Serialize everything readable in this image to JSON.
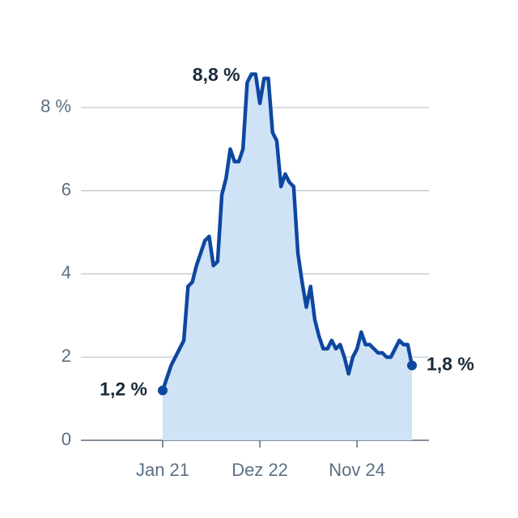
{
  "chart_data": {
    "type": "area",
    "categories": [
      "Jan 21",
      null,
      null,
      null,
      null,
      null,
      null,
      null,
      null,
      null,
      null,
      null,
      null,
      null,
      null,
      null,
      null,
      null,
      null,
      null,
      null,
      null,
      null,
      "Dez 22",
      null,
      null,
      null,
      null,
      null,
      null,
      null,
      null,
      null,
      null,
      null,
      null,
      null,
      null,
      null,
      null,
      null,
      null,
      null,
      null,
      null,
      null,
      "Nov 24",
      null,
      null,
      null,
      null,
      null,
      null,
      null,
      null,
      null,
      null,
      null,
      null,
      null
    ],
    "values": [
      1.2,
      1.5,
      1.8,
      2.0,
      2.2,
      2.4,
      3.7,
      3.8,
      4.2,
      4.5,
      4.8,
      4.9,
      4.2,
      4.3,
      5.9,
      6.3,
      7.0,
      6.7,
      6.7,
      7.0,
      8.6,
      8.8,
      8.8,
      8.1,
      8.7,
      8.7,
      7.4,
      7.2,
      6.1,
      6.4,
      6.2,
      6.1,
      4.5,
      3.8,
      3.2,
      3.7,
      2.9,
      2.5,
      2.2,
      2.2,
      2.4,
      2.2,
      2.3,
      2.0,
      1.6,
      2.0,
      2.2,
      2.6,
      2.3,
      2.3,
      2.2,
      2.1,
      2.1,
      2.0,
      2.0,
      2.2,
      2.4,
      2.3,
      2.3,
      1.8
    ],
    "value_labels": [
      "1,2 %",
      null,
      null,
      null,
      null,
      null,
      null,
      null,
      null,
      null,
      null,
      null,
      null,
      null,
      null,
      null,
      null,
      null,
      null,
      null,
      null,
      "8,8 %",
      null,
      null,
      null,
      null,
      null,
      null,
      null,
      null,
      null,
      null,
      null,
      null,
      null,
      null,
      null,
      null,
      null,
      null,
      null,
      null,
      null,
      null,
      null,
      null,
      null,
      null,
      null,
      null,
      null,
      null,
      null,
      null,
      null,
      null,
      null,
      null,
      null,
      "1,8 %"
    ],
    "color": "#0d47a1",
    "fill": "#cfe2f6",
    "ylim": [
      0,
      9
    ],
    "yticks": [
      0,
      2,
      4,
      6,
      {
        "value": 8,
        "label": "8 %"
      }
    ],
    "grid": true
  }
}
